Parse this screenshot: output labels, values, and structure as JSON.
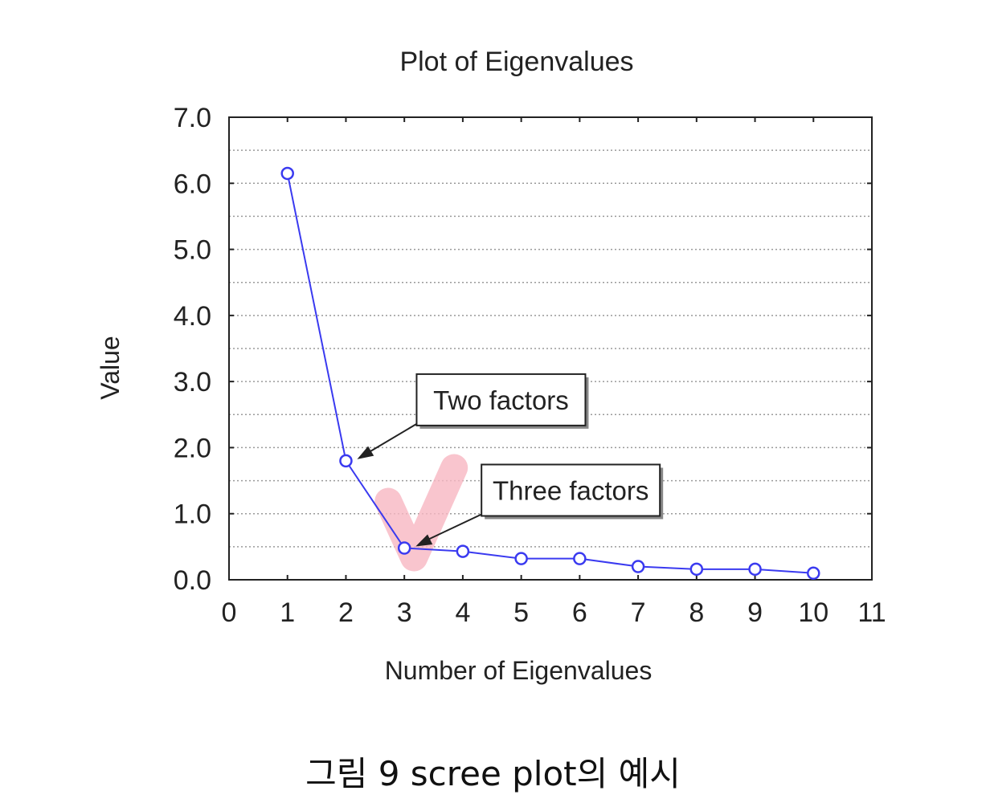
{
  "chart_data": {
    "type": "line",
    "title": "Plot of Eigenvalues",
    "xlabel": "Number of Eigenvalues",
    "ylabel": "Value",
    "xlim": [
      0,
      11
    ],
    "ylim": [
      0,
      7
    ],
    "xticks": [
      "0",
      "1",
      "2",
      "3",
      "4",
      "5",
      "6",
      "7",
      "8",
      "9",
      "10",
      "11"
    ],
    "yticks": [
      "0.0",
      "1.0",
      "2.0",
      "3.0",
      "4.0",
      "5.0",
      "6.0",
      "7.0"
    ],
    "grid": "horizontal dotted",
    "series": [
      {
        "x": [
          1,
          2,
          3,
          4,
          5,
          6,
          7,
          8,
          9,
          10
        ],
        "values": [
          6.15,
          1.8,
          0.48,
          0.43,
          0.32,
          0.32,
          0.2,
          0.16,
          0.16,
          0.1
        ],
        "color": "#3a3af0"
      }
    ],
    "annotations": [
      {
        "text": "Two factors",
        "x": 2,
        "y": 1.8
      },
      {
        "text": "Three factors",
        "x": 3,
        "y": 0.48
      }
    ],
    "highlight": {
      "type": "checkmark",
      "color": "#f7b6c2",
      "x": 3
    }
  },
  "caption": "그림 9 scree plot의 예시"
}
